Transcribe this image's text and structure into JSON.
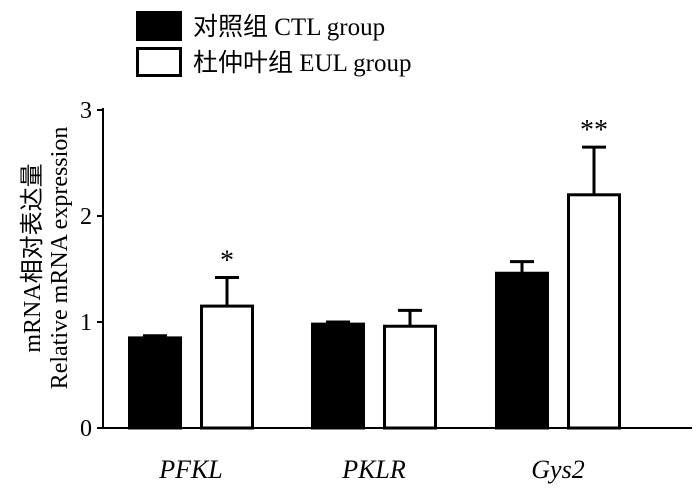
{
  "chart_data": {
    "type": "bar",
    "categories": [
      "PFKL",
      "PKLR",
      "Gys2"
    ],
    "series": [
      {
        "name": "对照组 CTL group",
        "fill": "#000000",
        "values": [
          0.85,
          0.98,
          1.46
        ],
        "errors": [
          0.02,
          0.02,
          0.11
        ],
        "significance": [
          "",
          "",
          ""
        ]
      },
      {
        "name": "杜仲叶组 EUL group",
        "fill": "#ffffff",
        "values": [
          1.15,
          0.96,
          2.2
        ],
        "errors": [
          0.27,
          0.15,
          0.45
        ],
        "significance": [
          "*",
          "",
          "**"
        ]
      }
    ],
    "ylabel_cn": "mRNA相对表达量",
    "ylabel_en": "Relative mRNA expression",
    "ylim": [
      0,
      3
    ],
    "yticks": [
      "0",
      "1",
      "2",
      "3"
    ],
    "legend_position": "top-left",
    "grid": false
  }
}
